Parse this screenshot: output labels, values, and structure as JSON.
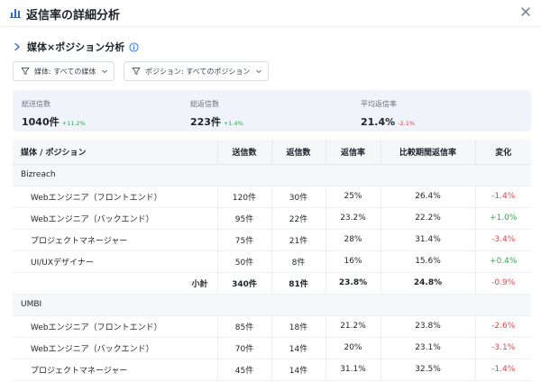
{
  "header": {
    "title": "返信率の詳細分析",
    "title_icon": "bar-chart-icon",
    "close_icon": "close-icon"
  },
  "section": {
    "title": "媒体×ポジション分析"
  },
  "filters": {
    "media": "媒体: すべての媒体",
    "position": "ポジション: すべてのポジション"
  },
  "stats": [
    {
      "label": "総送信数",
      "value": "1040件",
      "delta": "+11.2%",
      "trend": "up"
    },
    {
      "label": "総返信数",
      "value": "223件",
      "delta": "+1.4%",
      "trend": "up"
    },
    {
      "label": "平均返信率",
      "value": "21.4%",
      "delta": "-2.1%",
      "trend": "down"
    }
  ],
  "table": {
    "columns": [
      "媒体 / ポジション",
      "送信数",
      "返信数",
      "返信率",
      "比較期間返信率",
      "変化"
    ],
    "groups": [
      {
        "name": "Bizreach",
        "rows": [
          {
            "position": "Webエンジニア（フロントエンド）",
            "sent": "120件",
            "replies": "30件",
            "rate": "25%",
            "compare": "26.4%",
            "change": "-1.4%",
            "trend": "down"
          },
          {
            "position": "Webエンジニア（バックエンド）",
            "sent": "95件",
            "replies": "22件",
            "rate": "23.2%",
            "compare": "22.2%",
            "change": "+1.0%",
            "trend": "up"
          },
          {
            "position": "プロジェクトマネージャー",
            "sent": "75件",
            "replies": "21件",
            "rate": "28%",
            "compare": "31.4%",
            "change": "-3.4%",
            "trend": "down"
          },
          {
            "position": "UI/UXデザイナー",
            "sent": "50件",
            "replies": "8件",
            "rate": "16%",
            "compare": "15.6%",
            "change": "+0.4%",
            "trend": "up"
          }
        ],
        "subtotal": {
          "label": "小計",
          "sent": "340件",
          "replies": "81件",
          "rate": "23.8%",
          "compare": "24.8%",
          "change": "-0.9%",
          "trend": "down"
        }
      },
      {
        "name": "UMBI",
        "rows": [
          {
            "position": "Webエンジニア（フロントエンド）",
            "sent": "85件",
            "replies": "18件",
            "rate": "21.2%",
            "compare": "23.8%",
            "change": "-2.6%",
            "trend": "down"
          },
          {
            "position": "Webエンジニア（バックエンド）",
            "sent": "70件",
            "replies": "14件",
            "rate": "20%",
            "compare": "23.1%",
            "change": "-3.1%",
            "trend": "down"
          },
          {
            "position": "プロジェクトマネージャー",
            "sent": "45件",
            "replies": "14件",
            "rate": "31.1%",
            "compare": "32.5%",
            "change": "-1.4%",
            "trend": "down"
          }
        ]
      }
    ]
  },
  "colors": {
    "positive": "#2fa84f",
    "negative": "#e0474b",
    "accent": "#2f6bde",
    "stats_bg": "#f0f3fa",
    "header_bg": "#f6f7f9"
  }
}
